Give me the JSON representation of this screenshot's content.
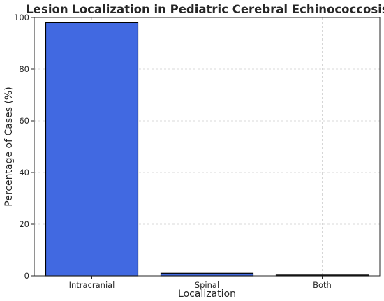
{
  "chart_data": {
    "type": "bar",
    "title": "Lesion Localization in Pediatric Cerebral Echinococcosis",
    "xlabel": "Localization",
    "ylabel": "Percentage of Cases (%)",
    "categories": [
      "Intracranial",
      "Spinal",
      "Both"
    ],
    "values": [
      98,
      1,
      0.3
    ],
    "ylim": [
      0,
      100
    ],
    "yticks": [
      0,
      20,
      40,
      60,
      80,
      100
    ],
    "grid": true,
    "colors": {
      "bar_fill": "#4169e1",
      "bar_edge": "#000000",
      "grid": "#cccccc",
      "text": "#262626"
    }
  }
}
